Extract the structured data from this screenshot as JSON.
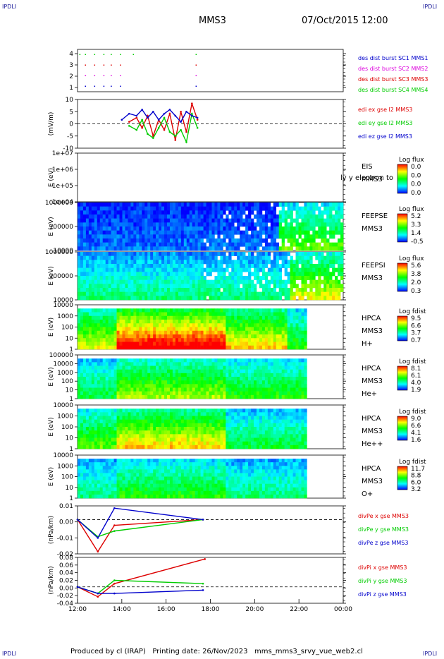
{
  "header": {
    "corner_label": "IPDLI",
    "title": "MMS3",
    "datetime": "07/Oct/2015 12:00"
  },
  "footer": {
    "corner_label": "IPDLI",
    "text": "Produced by cl (IRAP)   Printing date: 26/Nov/2023   mms_mms3_srvy_vue_web2.cl"
  },
  "colors": {
    "mms1": "#0000cc",
    "mms2": "#dd00dd",
    "mms3": "#dd0000",
    "mms4": "#00cc00",
    "x": "#dd0000",
    "y": "#00cc00",
    "z": "#0000cc"
  },
  "chart_data": [
    {
      "type": "scatter",
      "name": "burst",
      "ylim": [
        0.5,
        4.5
      ],
      "yticks": [
        "1",
        "2",
        "3",
        "4"
      ],
      "legend": [
        "des dist burst SC1 MMS1",
        "des dist burst SC2 MMS2",
        "des dist burst SC3 MMS3",
        "des dist burst SC4 MMS4"
      ],
      "series": [
        {
          "name": "des dist burst SC1 MMS1",
          "level": 1,
          "times": [
            "12:20",
            "12:45",
            "13:10",
            "13:30",
            "13:55",
            "17:20"
          ]
        },
        {
          "name": "des dist burst SC2 MMS2",
          "level": 2,
          "times": [
            "12:20",
            "12:45",
            "13:10",
            "13:30",
            "13:55",
            "17:20"
          ]
        },
        {
          "name": "des dist burst SC3 MMS3",
          "level": 3,
          "times": [
            "12:20",
            "12:45",
            "13:10",
            "13:30",
            "13:55",
            "17:20"
          ]
        },
        {
          "name": "des dist burst SC4 MMS4",
          "level": 4,
          "times": [
            "12:05",
            "12:20",
            "12:45",
            "13:10",
            "13:30",
            "13:55",
            "14:30",
            "17:20"
          ]
        }
      ]
    },
    {
      "type": "line",
      "ylabel": "(mV/m)",
      "ylim": [
        -12,
        12
      ],
      "yticks": [
        "-10",
        "-5",
        "0",
        "5",
        "10"
      ],
      "dashed_zero": true,
      "legend": [
        "edi ex gse l2 MMS3",
        "edi ey gse l2 MMS3",
        "edi ez gse l2 MMS3"
      ],
      "series": [
        {
          "name": "edi ex gse l2 MMS3",
          "times": [
            "14:20",
            "14:40",
            "14:55",
            "15:10",
            "15:25",
            "15:40",
            "15:55",
            "16:10",
            "16:25",
            "16:40",
            "16:55",
            "17:10",
            "17:25"
          ],
          "values": [
            1,
            3,
            -2,
            4,
            -6,
            2,
            -3,
            5,
            -8,
            6,
            -4,
            10,
            2
          ]
        },
        {
          "name": "edi ey gse l2 MMS3",
          "times": [
            "14:20",
            "14:40",
            "14:55",
            "15:10",
            "15:25",
            "15:40",
            "15:55",
            "16:10",
            "16:25",
            "16:40",
            "16:55",
            "17:10",
            "17:25"
          ],
          "values": [
            -1,
            -3,
            2,
            -5,
            -7,
            -2,
            3,
            -4,
            -6,
            -3,
            -9,
            5,
            -2
          ]
        },
        {
          "name": "edi ez gse l2 MMS3",
          "times": [
            "14:00",
            "14:20",
            "14:40",
            "14:55",
            "15:10",
            "15:25",
            "15:40",
            "15:55",
            "16:10",
            "16:25",
            "16:40",
            "16:55",
            "17:10",
            "17:25"
          ],
          "values": [
            2,
            5,
            4,
            7,
            3,
            6,
            2,
            5,
            7,
            4,
            1,
            6,
            4,
            3
          ]
        }
      ]
    },
    {
      "type": "heatmap",
      "ylabel": "E (eV)",
      "yticks": [
        "1e+04",
        "1e+05",
        "1e+06",
        "1e+07"
      ],
      "right_labels": [
        "EIS",
        "MMS3"
      ],
      "overlay_text": "ly y electron to",
      "colorbar": {
        "title": "Log flux",
        "ticks": [
          "0.0",
          "0.0",
          "0.0",
          "0.0"
        ]
      },
      "note": "empty"
    },
    {
      "type": "heatmap",
      "ylabel": "E (eV)",
      "yticks": [
        "10000",
        "100000",
        "1000000"
      ],
      "right_labels": [
        "FEEPSE",
        "MMS3"
      ],
      "colorbar": {
        "title": "Log flux",
        "ticks": [
          "5.2",
          "3.3",
          "1.4",
          "-0.5"
        ]
      }
    },
    {
      "type": "heatmap",
      "ylabel": "E (eV)",
      "yticks": [
        "10000",
        "100000",
        "1000000"
      ],
      "right_labels": [
        "FEEPSI",
        "MMS3"
      ],
      "colorbar": {
        "title": "Log flux",
        "ticks": [
          "5.6",
          "3.8",
          "2.0",
          "0.3"
        ]
      }
    },
    {
      "type": "heatmap",
      "ylabel": "E (eV)",
      "yticks": [
        "1",
        "10",
        "100",
        "1000",
        "10000"
      ],
      "right_labels": [
        "HPCA",
        "MMS3",
        "H+"
      ],
      "colorbar": {
        "title": "Log fdist",
        "ticks": [
          "9.5",
          "6.6",
          "3.7",
          "0.7"
        ]
      }
    },
    {
      "type": "heatmap",
      "ylabel": "E (eV)",
      "yticks": [
        "1",
        "10",
        "100",
        "1000",
        "10000",
        "100000"
      ],
      "right_labels": [
        "HPCA",
        "MMS3",
        "He+"
      ],
      "colorbar": {
        "title": "Log fdist",
        "ticks": [
          "8.1",
          "6.1",
          "4.0",
          "1.9"
        ]
      }
    },
    {
      "type": "heatmap",
      "ylabel": "E (eV)",
      "yticks": [
        "1",
        "10",
        "100",
        "1000",
        "10000"
      ],
      "right_labels": [
        "HPCA",
        "MMS3",
        "He++"
      ],
      "colorbar": {
        "title": "Log fdist",
        "ticks": [
          "9.0",
          "6.6",
          "4.1",
          "1.6"
        ]
      }
    },
    {
      "type": "heatmap",
      "ylabel": "E (eV)",
      "yticks": [
        "1",
        "10",
        "100",
        "1000",
        "10000"
      ],
      "right_labels": [
        "HPCA",
        "MMS3",
        "O+"
      ],
      "colorbar": {
        "title": "Log fdist",
        "ticks": [
          "11.7",
          "8.8",
          "6.0",
          "3.2"
        ]
      }
    },
    {
      "type": "line",
      "ylabel": "(nPa/km)",
      "ylim": [
        -0.03,
        0.012
      ],
      "yticks": [
        "-0.02",
        "-0.01",
        "0.00",
        "0.01"
      ],
      "dashed_zero": true,
      "legend": [
        "divPe x gse MMS3",
        "divPe y gse MMS3",
        "divPe z gse MMS3"
      ],
      "series": [
        {
          "name": "divPe x gse MMS3",
          "times": [
            "12:00",
            "12:55",
            "13:40",
            "17:40"
          ],
          "values": [
            0.0,
            -0.028,
            -0.005,
            0.0
          ]
        },
        {
          "name": "divPe y gse MMS3",
          "times": [
            "12:00",
            "12:55",
            "13:40",
            "17:40"
          ],
          "values": [
            0.0,
            -0.015,
            -0.01,
            0.0
          ]
        },
        {
          "name": "divPe z gse MMS3",
          "times": [
            "12:00",
            "12:55",
            "13:40",
            "17:40"
          ],
          "values": [
            0.0,
            -0.016,
            0.01,
            0.0
          ]
        }
      ]
    },
    {
      "type": "line",
      "ylabel": "(nPa/km)",
      "ylim": [
        -0.05,
        0.09
      ],
      "yticks": [
        "-0.04",
        "-0.02",
        "0.00",
        "0.02",
        "0.04",
        "0.06",
        "0.08"
      ],
      "dashed_zero": true,
      "legend": [
        "divPi x gse MMS3",
        "divPi y gse MMS3",
        "divPi z gse MMS3"
      ],
      "series": [
        {
          "name": "divPi x gse MMS3",
          "times": [
            "12:00",
            "12:55",
            "13:40",
            "17:45"
          ],
          "values": [
            0.0,
            -0.03,
            0.01,
            0.085
          ]
        },
        {
          "name": "divPi y gse MMS3",
          "times": [
            "12:00",
            "12:55",
            "13:40",
            "17:40"
          ],
          "values": [
            0.0,
            -0.02,
            0.02,
            0.01
          ]
        },
        {
          "name": "divPi z gse MMS3",
          "times": [
            "12:00",
            "12:55",
            "13:40",
            "17:40"
          ],
          "values": [
            0.0,
            -0.02,
            -0.02,
            -0.01
          ]
        }
      ]
    },
    {
      "type": "axis",
      "xticks": [
        "12:00",
        "14:00",
        "16:00",
        "18:00",
        "20:00",
        "22:00",
        "00:00"
      ]
    }
  ]
}
